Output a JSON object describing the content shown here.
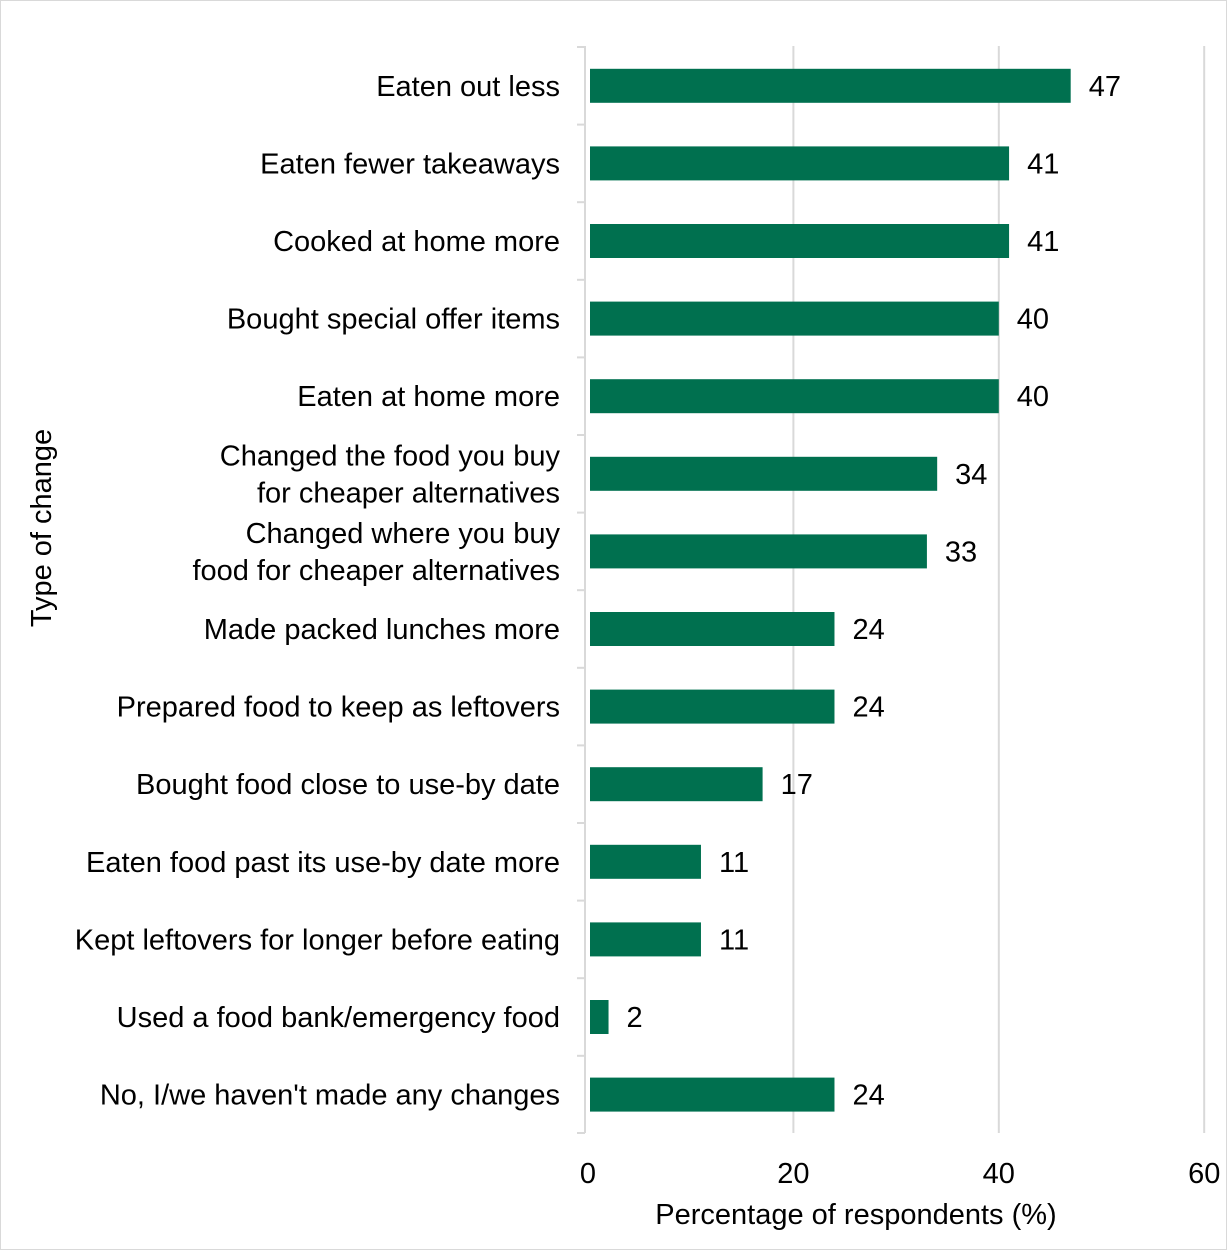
{
  "chart_data": {
    "type": "bar",
    "orientation": "horizontal",
    "categories": [
      [
        "Eaten out less"
      ],
      [
        "Eaten fewer takeaways"
      ],
      [
        "Cooked at home more"
      ],
      [
        "Bought special offer items"
      ],
      [
        "Eaten at home more"
      ],
      [
        "Changed the food you buy",
        "for cheaper alternatives"
      ],
      [
        "Changed where you buy",
        "food for cheaper alternatives"
      ],
      [
        "Made packed lunches more"
      ],
      [
        "Prepared food to keep as leftovers"
      ],
      [
        "Bought food close to use-by date"
      ],
      [
        "Eaten food past its use-by date more"
      ],
      [
        "Kept leftovers for longer before eating"
      ],
      [
        "Used a food bank/emergency food"
      ],
      [
        "No, I/we haven't made any changes"
      ]
    ],
    "values": [
      47,
      41,
      41,
      40,
      40,
      34,
      33,
      24,
      24,
      17,
      11,
      11,
      2,
      24
    ],
    "xlabel": "Percentage of respondents (%)",
    "ylabel": "Type of change",
    "xlim": [
      0,
      60
    ],
    "xticks": [
      0,
      20,
      40,
      60
    ],
    "grid": "vertical",
    "legend": "none",
    "bar_color": "#00704f"
  }
}
